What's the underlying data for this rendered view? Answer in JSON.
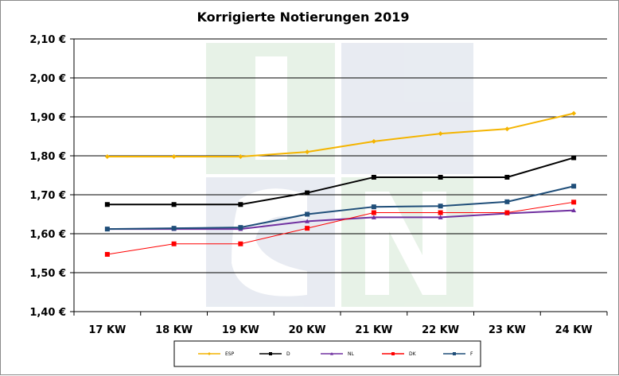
{
  "chart_data": {
    "type": "line",
    "title": "Korrigierte Notierungen 2019",
    "categories": [
      "17 KW",
      "18 KW",
      "19 KW",
      "20 KW",
      "21 KW",
      "22 KW",
      "23 KW",
      "24 KW"
    ],
    "ylim": [
      1.4,
      2.1
    ],
    "yticks": [
      "1,40 €",
      "1,50 €",
      "1,60 €",
      "1,70 €",
      "1,80 €",
      "1,90 €",
      "2,00 €",
      "2,10 €"
    ],
    "grid": true,
    "legend_position": "bottom",
    "series": [
      {
        "name": "ESP",
        "color": "#F4B400",
        "marker": "diamond",
        "values": [
          1.798,
          1.798,
          1.798,
          1.81,
          1.837,
          1.857,
          1.869,
          1.909
        ]
      },
      {
        "name": "D",
        "color": "#000000",
        "marker": "square",
        "values": [
          1.675,
          1.675,
          1.675,
          1.705,
          1.745,
          1.745,
          1.745,
          1.795
        ]
      },
      {
        "name": "NL",
        "color": "#7030A0",
        "marker": "triangle",
        "values": [
          1.612,
          1.612,
          1.612,
          1.632,
          1.642,
          1.642,
          1.652,
          1.66
        ]
      },
      {
        "name": "DK",
        "color": "#FF0000",
        "marker": "square",
        "values": [
          1.547,
          1.574,
          1.574,
          1.614,
          1.654,
          1.654,
          1.654,
          1.681
        ]
      },
      {
        "name": "F",
        "color": "#1F4E79",
        "marker": "square",
        "values": [
          1.612,
          1.614,
          1.616,
          1.65,
          1.669,
          1.671,
          1.682,
          1.722
        ]
      }
    ]
  }
}
